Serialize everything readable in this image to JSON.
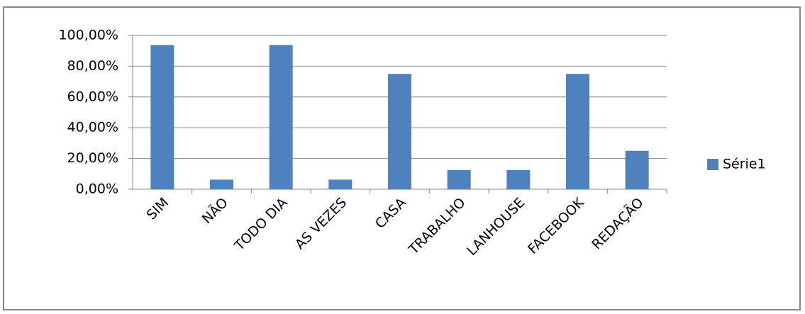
{
  "chart_data": {
    "type": "bar",
    "categories": [
      "SIM",
      "NÃO",
      "TODO DIA",
      "AS VEZES",
      "CASA",
      "TRABALHO",
      "LANHOUSE",
      "FACEBOOK",
      "REDAÇÃO"
    ],
    "series": [
      {
        "name": "Série1",
        "color": "#4f81bd",
        "values": [
          93.75,
          6.25,
          93.75,
          6.25,
          75,
          12.5,
          12.5,
          75,
          25
        ]
      }
    ],
    "ylim": [
      0,
      100
    ],
    "yticks": [
      {
        "value": 0,
        "label": "0,00%"
      },
      {
        "value": 20,
        "label": "20,00%"
      },
      {
        "value": 40,
        "label": "40,00%"
      },
      {
        "value": 60,
        "label": "60,00%"
      },
      {
        "value": 80,
        "label": "80,00%"
      },
      {
        "value": 100,
        "label": "100,00%"
      }
    ],
    "grid": true,
    "legend": "right"
  }
}
